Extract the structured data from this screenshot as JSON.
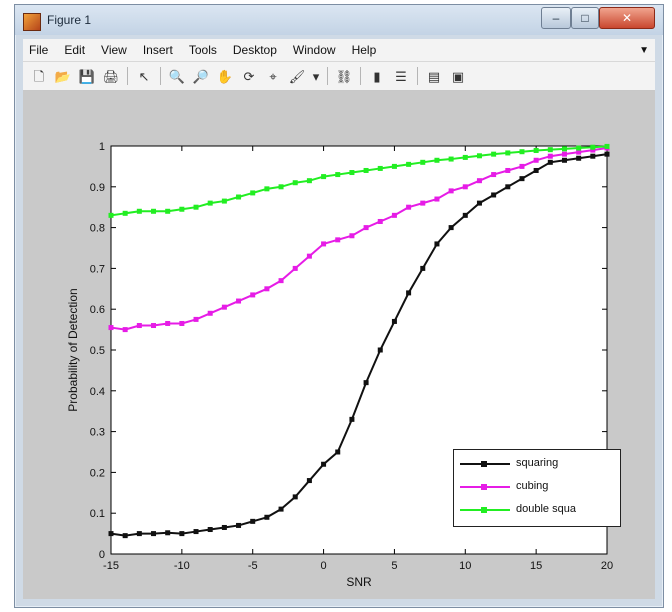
{
  "window": {
    "title": "Figure 1",
    "minimize_glyph": "–",
    "maximize_glyph": "□",
    "close_glyph": "✕"
  },
  "menu": {
    "items": [
      "File",
      "Edit",
      "View",
      "Insert",
      "Tools",
      "Desktop",
      "Window",
      "Help"
    ],
    "overflow_glyph": "▼"
  },
  "toolbar": {
    "icons": [
      {
        "name": "new-figure-icon",
        "glyph": "🗋"
      },
      {
        "name": "open-file-icon",
        "glyph": "📂"
      },
      {
        "name": "save-icon",
        "glyph": "💾"
      },
      {
        "name": "print-icon",
        "glyph": "🖨"
      },
      {
        "name": "edit-plot-arrow-icon",
        "glyph": "↖"
      },
      {
        "name": "zoom-in-icon",
        "glyph": "🔍"
      },
      {
        "name": "zoom-out-icon",
        "glyph": "🔎"
      },
      {
        "name": "pan-hand-icon",
        "glyph": "✋"
      },
      {
        "name": "rotate-3d-icon",
        "glyph": "⟳"
      },
      {
        "name": "data-cursor-icon",
        "glyph": "⌖"
      },
      {
        "name": "brush-icon",
        "glyph": "🖌"
      },
      {
        "name": "brush-dropdown-icon",
        "glyph": "▾"
      },
      {
        "name": "link-plot-icon",
        "glyph": "⛓"
      },
      {
        "name": "insert-colorbar-icon",
        "glyph": "▮"
      },
      {
        "name": "insert-legend-icon",
        "glyph": "☰"
      },
      {
        "name": "hide-plot-tools-icon",
        "glyph": "▤"
      },
      {
        "name": "show-plot-tools-icon",
        "glyph": "▣"
      }
    ]
  },
  "colors": {
    "squaring": "#111111",
    "cubing": "#e61ce6",
    "double": "#22ee22"
  },
  "chart_data": {
    "type": "line",
    "title": "",
    "xlabel": "SNR",
    "ylabel": "Probability of Detection",
    "xlim": [
      -15,
      20
    ],
    "ylim": [
      0,
      1
    ],
    "x_ticks": [
      -15,
      -10,
      -5,
      0,
      5,
      10,
      15,
      20
    ],
    "y_ticks": [
      0,
      0.1,
      0.2,
      0.3,
      0.4,
      0.5,
      0.6,
      0.7,
      0.8,
      0.9,
      1
    ],
    "y_tick_labels": [
      "0",
      "0.1",
      "0.2",
      "0.3",
      "0.4",
      "0.5",
      "0.6",
      "0.7",
      "0.8",
      "0.9",
      "1"
    ],
    "grid": false,
    "legend_position": "right",
    "series": [
      {
        "name": "squaring",
        "x": [
          -15,
          -14,
          -13,
          -12,
          -11,
          -10,
          -9,
          -8,
          -7,
          -6,
          -5,
          -4,
          -3,
          -2,
          -1,
          0,
          1,
          2,
          3,
          4,
          5,
          6,
          7,
          8,
          9,
          10,
          11,
          12,
          13,
          14,
          15,
          16,
          17,
          18,
          19,
          20
        ],
        "y": [
          0.05,
          0.045,
          0.05,
          0.05,
          0.052,
          0.05,
          0.055,
          0.06,
          0.065,
          0.07,
          0.08,
          0.09,
          0.11,
          0.14,
          0.18,
          0.22,
          0.25,
          0.33,
          0.42,
          0.5,
          0.57,
          0.64,
          0.7,
          0.76,
          0.8,
          0.83,
          0.86,
          0.88,
          0.9,
          0.92,
          0.94,
          0.96,
          0.965,
          0.97,
          0.975,
          0.98
        ]
      },
      {
        "name": "cubing",
        "x": [
          -15,
          -14,
          -13,
          -12,
          -11,
          -10,
          -9,
          -8,
          -7,
          -6,
          -5,
          -4,
          -3,
          -2,
          -1,
          0,
          1,
          2,
          3,
          4,
          5,
          6,
          7,
          8,
          9,
          10,
          11,
          12,
          13,
          14,
          15,
          16,
          17,
          18,
          19,
          20
        ],
        "y": [
          0.555,
          0.55,
          0.56,
          0.56,
          0.565,
          0.565,
          0.575,
          0.59,
          0.605,
          0.62,
          0.635,
          0.65,
          0.67,
          0.7,
          0.73,
          0.76,
          0.77,
          0.78,
          0.8,
          0.815,
          0.83,
          0.85,
          0.86,
          0.87,
          0.89,
          0.9,
          0.915,
          0.93,
          0.94,
          0.95,
          0.965,
          0.975,
          0.98,
          0.985,
          0.99,
          0.995
        ]
      },
      {
        "name": "double squa",
        "x": [
          -15,
          -14,
          -13,
          -12,
          -11,
          -10,
          -9,
          -8,
          -7,
          -6,
          -5,
          -4,
          -3,
          -2,
          -1,
          0,
          1,
          2,
          3,
          4,
          5,
          6,
          7,
          8,
          9,
          10,
          11,
          12,
          13,
          14,
          15,
          16,
          17,
          18,
          19,
          20
        ],
        "y": [
          0.83,
          0.835,
          0.84,
          0.84,
          0.84,
          0.845,
          0.85,
          0.86,
          0.865,
          0.875,
          0.885,
          0.895,
          0.9,
          0.91,
          0.915,
          0.925,
          0.93,
          0.935,
          0.94,
          0.945,
          0.95,
          0.955,
          0.96,
          0.965,
          0.968,
          0.972,
          0.976,
          0.98,
          0.983,
          0.986,
          0.989,
          0.991,
          0.993,
          0.995,
          0.997,
          0.999
        ]
      }
    ]
  }
}
